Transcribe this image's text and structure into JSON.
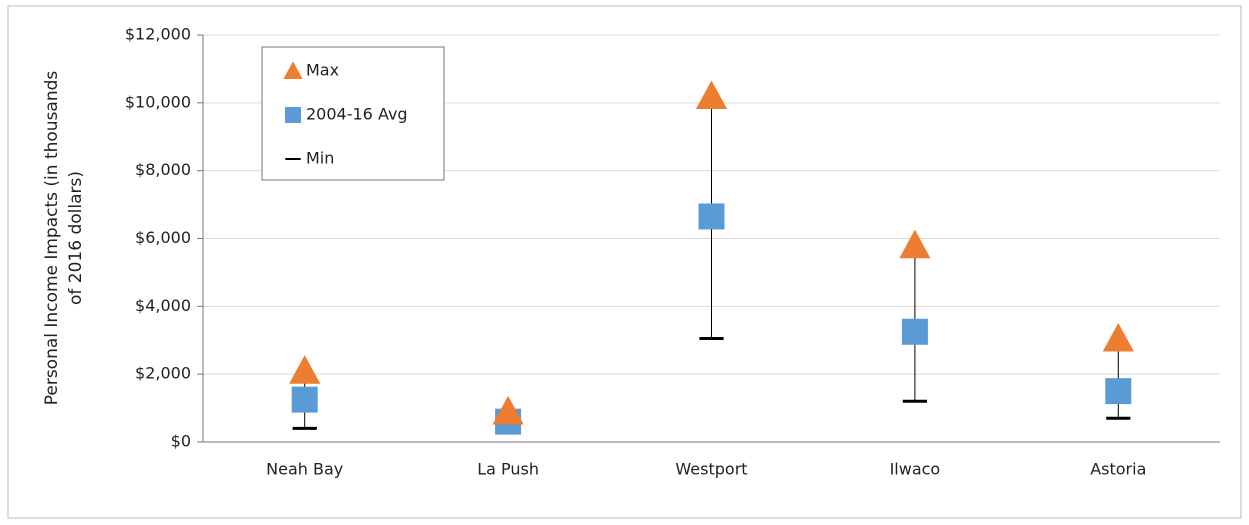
{
  "chart_data": {
    "type": "high-low",
    "ylabel_lines": [
      "Personal Income Impacts (in thousands",
      "of 2016 dollars)"
    ],
    "categories": [
      "Neah Bay",
      "La Push",
      "Westport",
      "Ilwaco",
      "Astoria"
    ],
    "series": [
      {
        "name": "Max",
        "color": "#ed7d31",
        "marker": "triangle",
        "values": [
          2100,
          900,
          10200,
          5800,
          3050
        ]
      },
      {
        "name": "2004-16 Avg",
        "color": "#5b9bd5",
        "marker": "square",
        "values": [
          1250,
          600,
          6650,
          3250,
          1500
        ]
      },
      {
        "name": "Min",
        "color": "#000000",
        "marker": "dash",
        "values": [
          400,
          350,
          3050,
          1200,
          700
        ]
      }
    ],
    "ylim": [
      0,
      12000
    ],
    "yticks": [
      {
        "value": 0,
        "label": "$0"
      },
      {
        "value": 2000,
        "label": "$2,000"
      },
      {
        "value": 4000,
        "label": "$4,000"
      },
      {
        "value": 6000,
        "label": "$6,000"
      },
      {
        "value": 8000,
        "label": "$8,000"
      },
      {
        "value": 10000,
        "label": "$10,000"
      },
      {
        "value": 12000,
        "label": "$12,000"
      }
    ],
    "grid": true
  }
}
